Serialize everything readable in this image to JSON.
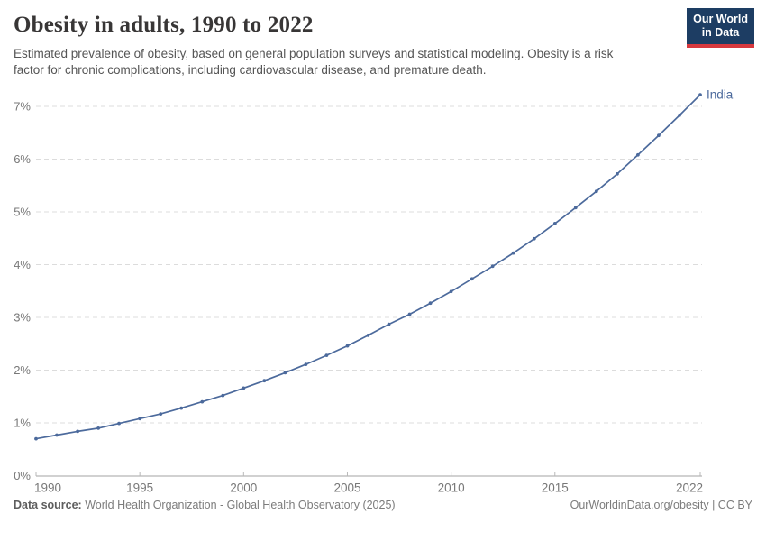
{
  "header": {
    "title": "Obesity in adults, 1990 to 2022",
    "subtitle": "Estimated prevalence of obesity, based on general population surveys and statistical modeling. Obesity is a risk factor for chronic complications, including cardiovascular disease, and premature death.",
    "logo": {
      "line1": "Our World",
      "line2": "in Data"
    }
  },
  "chart_data": {
    "type": "line",
    "title": "Obesity in adults, 1990 to 2022",
    "xlabel": "",
    "ylabel": "",
    "x": [
      1990,
      1991,
      1992,
      1993,
      1994,
      1995,
      1996,
      1997,
      1998,
      1999,
      2000,
      2001,
      2002,
      2003,
      2004,
      2005,
      2006,
      2007,
      2008,
      2009,
      2010,
      2011,
      2012,
      2013,
      2014,
      2015,
      2016,
      2017,
      2018,
      2019,
      2020,
      2021,
      2022
    ],
    "series": [
      {
        "name": "India",
        "color": "#4c6a9c",
        "values": [
          0.7,
          0.77,
          0.84,
          0.9,
          0.99,
          1.08,
          1.17,
          1.28,
          1.4,
          1.52,
          1.66,
          1.8,
          1.95,
          2.11,
          2.28,
          2.46,
          2.66,
          2.87,
          3.06,
          3.27,
          3.49,
          3.73,
          3.97,
          4.22,
          4.49,
          4.78,
          5.08,
          5.39,
          5.72,
          6.08,
          6.45,
          6.83,
          7.22
        ]
      }
    ],
    "x_ticks": [
      1990,
      1995,
      2000,
      2005,
      2010,
      2015,
      2022
    ],
    "y_ticks": [
      0,
      1,
      2,
      3,
      4,
      5,
      6,
      7
    ],
    "y_tick_suffix": "%",
    "xlim": [
      1990,
      2022
    ],
    "ylim": [
      0,
      7.4
    ],
    "grid": "horizontal-dashed",
    "markers": true,
    "legend": "end-of-line-label"
  },
  "footer": {
    "datasource_label": "Data source:",
    "datasource_text": " World Health Organization - Global Health Observatory (2025)",
    "rights": "OurWorldinData.org/obesity | CC BY"
  },
  "colors": {
    "series_line": "#4c6a9c",
    "title_text": "#383636",
    "subtitle_text": "#555555",
    "axis_line": "#a3a3a3",
    "tick_mark": "#b8b8b8",
    "tick_label": "#787878",
    "gridline": "#dcdcdc",
    "logo_bg": "#1d3d63",
    "logo_stripe": "#d7383d"
  }
}
